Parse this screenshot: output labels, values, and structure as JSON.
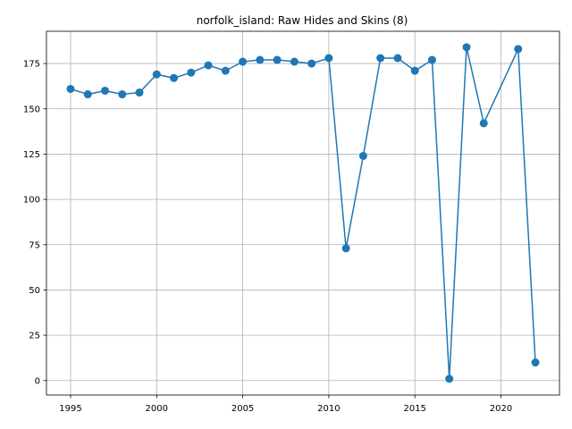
{
  "chart_data": {
    "type": "line",
    "title": "norfolk_island: Raw Hides and Skins (8)",
    "xlabel": "",
    "ylabel": "",
    "grid": true,
    "xlim": [
      1993.6,
      2023.4
    ],
    "ylim": [
      -8.0,
      192.8
    ],
    "x_ticks": [
      1995,
      2000,
      2005,
      2010,
      2015,
      2020
    ],
    "y_ticks": [
      0,
      25,
      50,
      75,
      100,
      125,
      150,
      175
    ],
    "series": [
      {
        "color": "#1f77b4",
        "marker": "circle",
        "x": [
          1995,
          1996,
          1997,
          1998,
          1999,
          2000,
          2001,
          2002,
          2003,
          2004,
          2005,
          2006,
          2007,
          2008,
          2009,
          2010,
          2011,
          2012,
          2013,
          2014,
          2015,
          2016,
          2017,
          2018,
          2019,
          2021,
          2022
        ],
        "y": [
          161,
          158,
          160,
          158,
          159,
          169,
          167,
          170,
          174,
          171,
          176,
          177,
          177,
          176,
          175,
          178,
          73,
          124,
          178,
          178,
          171,
          177,
          1,
          184,
          142,
          183,
          10
        ]
      }
    ]
  }
}
